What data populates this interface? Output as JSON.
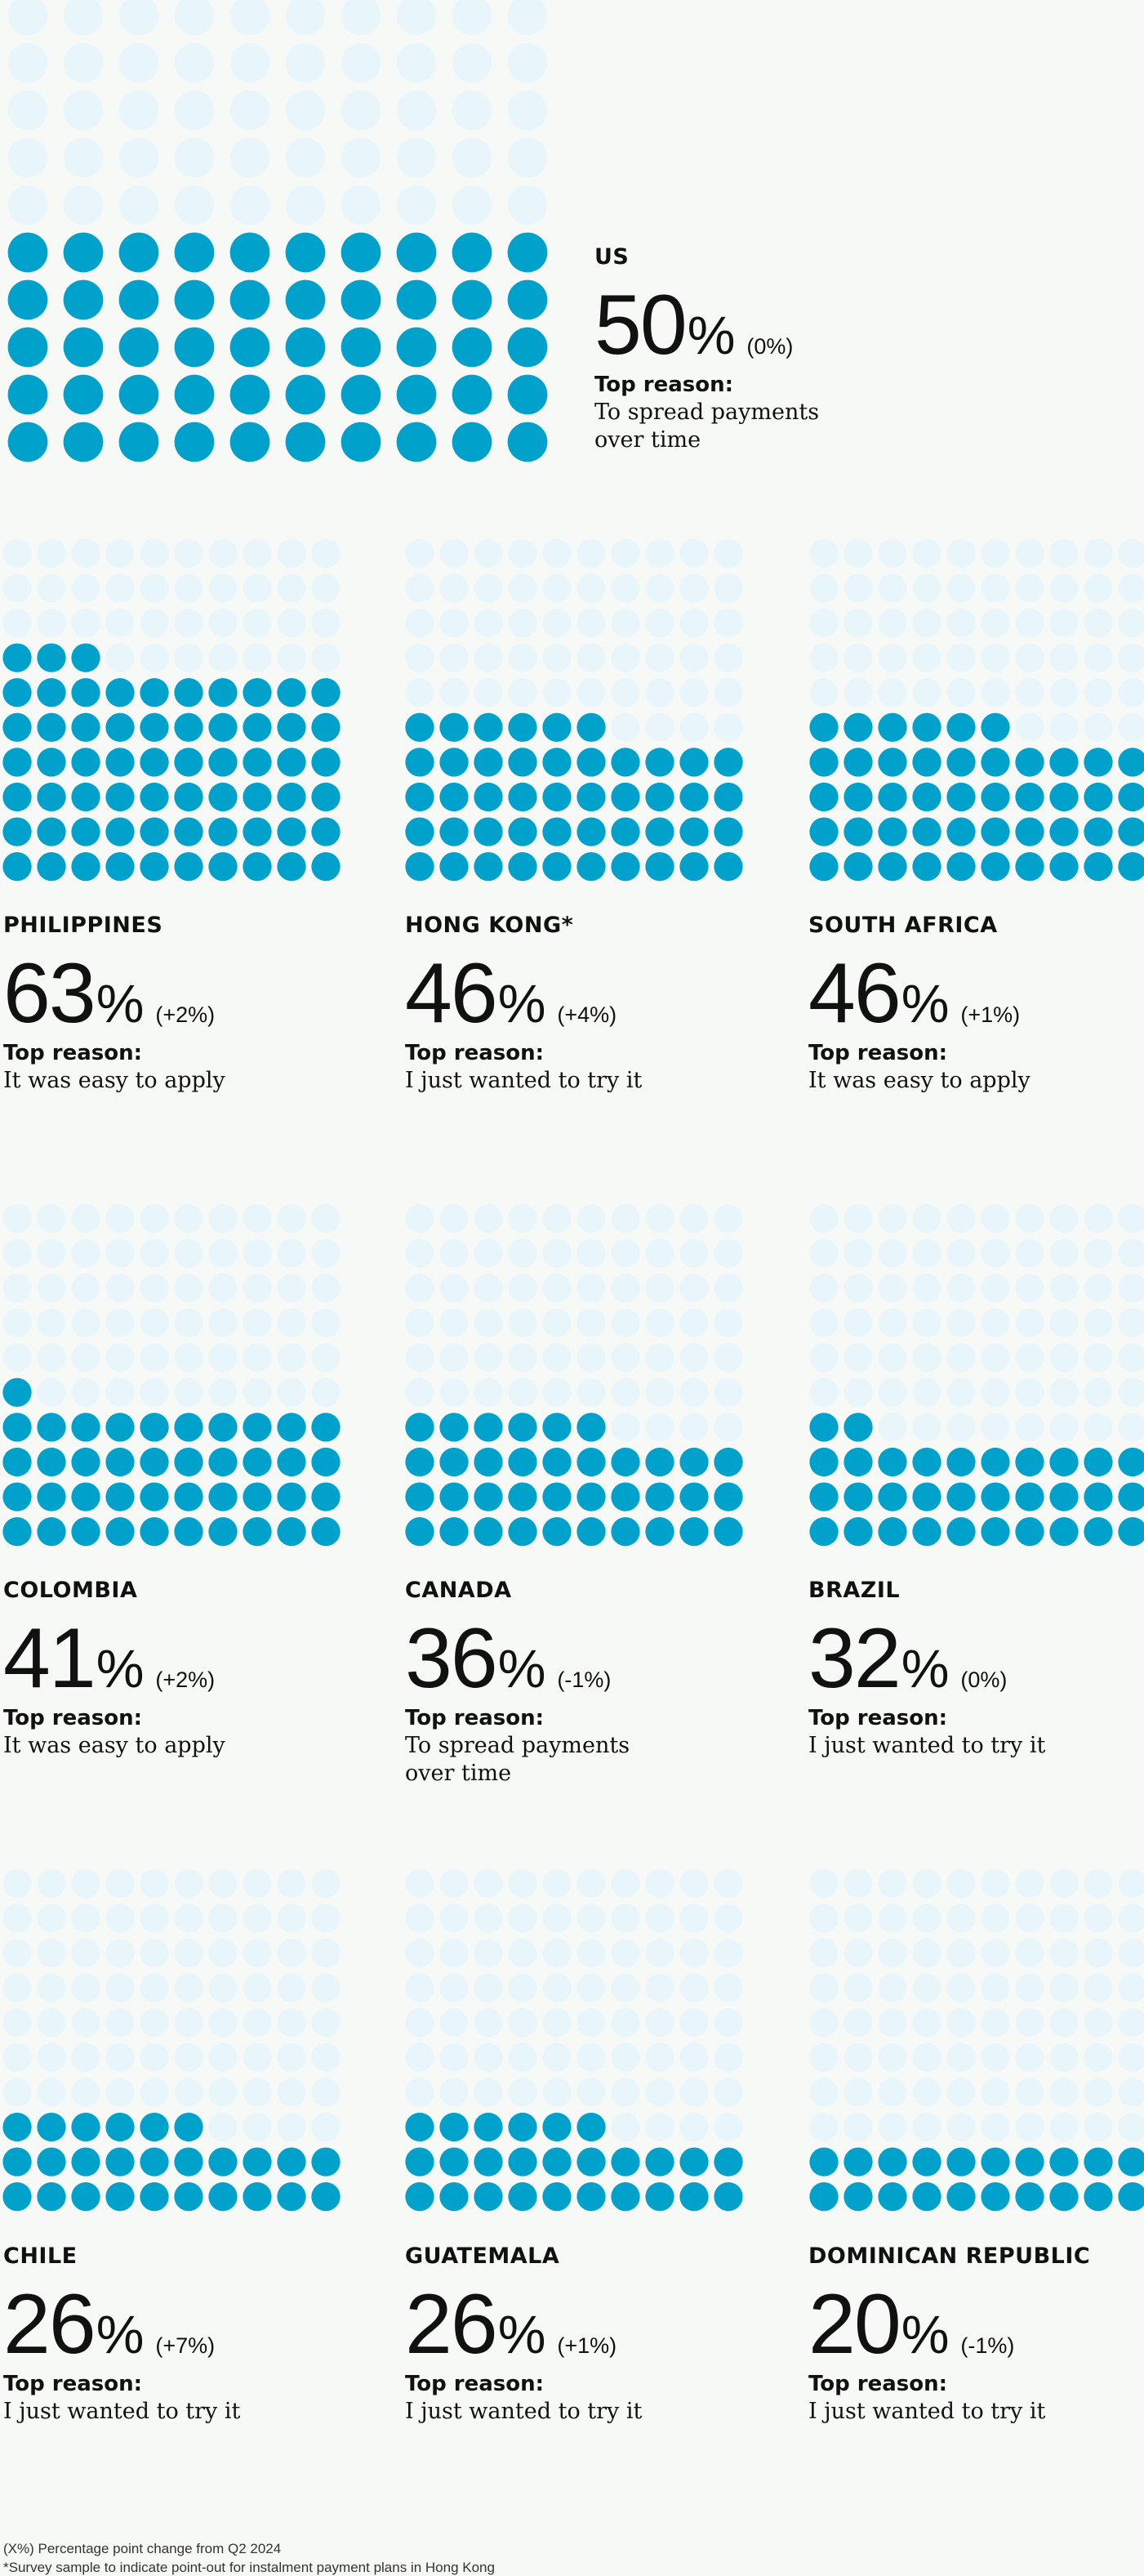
{
  "colors": {
    "filled": "#00a2cc",
    "empty": "#e8f6fb",
    "background": "#f7f9f7",
    "text": "#111111"
  },
  "labels": {
    "top_reason": "Top reason:",
    "percent_sign": "%"
  },
  "chart_data": [
    {
      "type": "waffle",
      "total": 100,
      "country": "US",
      "value": 50,
      "change": "(0%)",
      "reason": "To spread payments over time",
      "reason_lines": [
        "To spread payments",
        "over time"
      ]
    },
    {
      "type": "waffle",
      "total": 100,
      "country": "PHILIPPINES",
      "value": 63,
      "change": "(+2%)",
      "reason": "It was easy to apply",
      "reason_lines": [
        "It was easy to apply"
      ]
    },
    {
      "type": "waffle",
      "total": 100,
      "country": "HONG KONG*",
      "value": 46,
      "change": "(+4%)",
      "reason": "I just wanted to try it",
      "reason_lines": [
        "I just wanted to try it"
      ]
    },
    {
      "type": "waffle",
      "total": 100,
      "country": "SOUTH AFRICA",
      "value": 46,
      "change": "(+1%)",
      "reason": "It was easy to apply",
      "reason_lines": [
        "It was easy to apply"
      ]
    },
    {
      "type": "waffle",
      "total": 100,
      "country": "COLOMBIA",
      "value": 41,
      "change": "(+2%)",
      "reason": "It was easy to apply",
      "reason_lines": [
        "It was easy to apply"
      ]
    },
    {
      "type": "waffle",
      "total": 100,
      "country": "CANADA",
      "value": 36,
      "change": "(-1%)",
      "reason": "To spread payments over time",
      "reason_lines": [
        "To spread payments",
        "over time"
      ]
    },
    {
      "type": "waffle",
      "total": 100,
      "country": "BRAZIL",
      "value": 32,
      "change": "(0%)",
      "reason": "I just wanted to try it",
      "reason_lines": [
        "I just wanted to try it"
      ]
    },
    {
      "type": "waffle",
      "total": 100,
      "country": "CHILE",
      "value": 26,
      "change": "(+7%)",
      "reason": "I just wanted to try it",
      "reason_lines": [
        "I just wanted to try it"
      ]
    },
    {
      "type": "waffle",
      "total": 100,
      "country": "GUATEMALA",
      "value": 26,
      "change": "(+1%)",
      "reason": "I just wanted to try it",
      "reason_lines": [
        "I just wanted to try it"
      ]
    },
    {
      "type": "waffle",
      "total": 100,
      "country": "DOMINICAN REPUBLIC",
      "value": 20,
      "change": "(-1%)",
      "reason": "I just wanted to try it",
      "reason_lines": [
        "I just wanted to try it"
      ]
    }
  ],
  "footnotes": [
    "(X%) Percentage point change from Q2 2024",
    "*Survey sample to indicate point-out for instalment payment plans in Hong Kong"
  ]
}
